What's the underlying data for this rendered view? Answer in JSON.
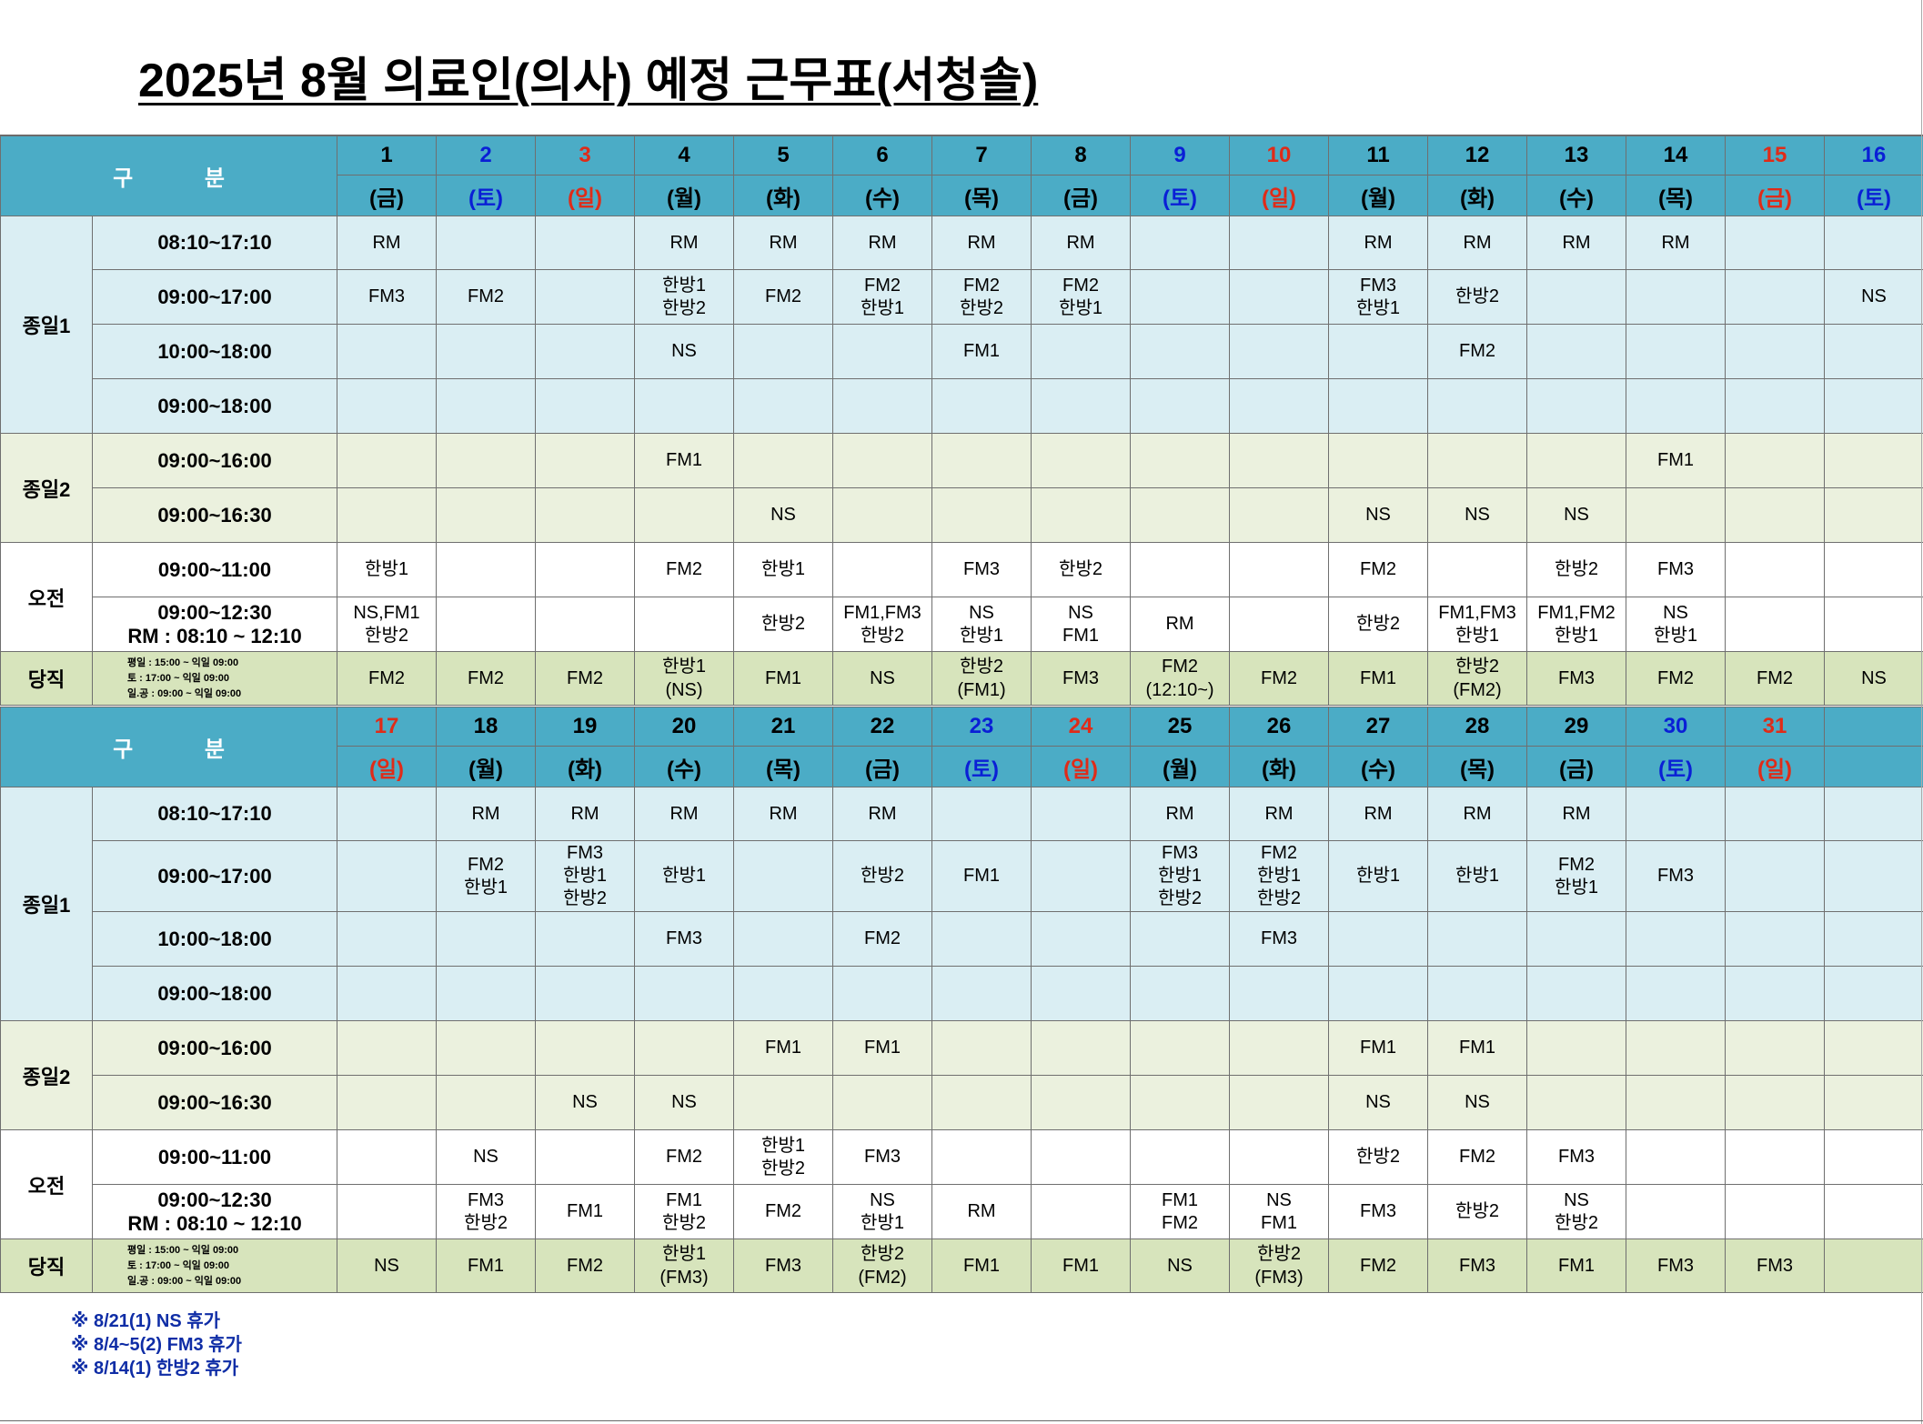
{
  "title": "2025년 8월  의료인(의사) 예정 근무표(서청솔)",
  "colors": {
    "header": "#4bacc6",
    "jongil1": "#daeef3",
    "jongil2": "#ebf1de",
    "duty": "#d7e4bc",
    "saturday": "#0a1fd6",
    "holiday": "#e02b18"
  },
  "gubun_label": "구 분",
  "categories": {
    "jongil1": "종일1",
    "jongil2": "종일2",
    "ojeon": "오전",
    "duty": "당직"
  },
  "shift_times": {
    "j1a": "08:10~17:10",
    "j1b": "09:00~17:00",
    "j1c": "10:00~18:00",
    "j1d": "09:00~18:00",
    "j2a": "09:00~16:00",
    "j2b": "09:00~16:30",
    "ama": "09:00~11:00",
    "amb_line1": "09:00~12:30",
    "amb_line2": "RM : 08:10 ~ 12:10"
  },
  "duty_note": [
    "평일 : 15:00 ~ 익일 09:00",
    "토    : 17:00 ~ 익일 09:00",
    "일.공 : 09:00 ~ 익일 09:00"
  ],
  "weeks": [
    {
      "days": [
        {
          "num": "1",
          "day": "(금)",
          "color": "black"
        },
        {
          "num": "2",
          "day": "(토)",
          "color": "blue"
        },
        {
          "num": "3",
          "day": "(일)",
          "color": "red"
        },
        {
          "num": "4",
          "day": "(월)",
          "color": "black"
        },
        {
          "num": "5",
          "day": "(화)",
          "color": "black"
        },
        {
          "num": "6",
          "day": "(수)",
          "color": "black"
        },
        {
          "num": "7",
          "day": "(목)",
          "color": "black"
        },
        {
          "num": "8",
          "day": "(금)",
          "color": "black"
        },
        {
          "num": "9",
          "day": "(토)",
          "color": "blue"
        },
        {
          "num": "10",
          "day": "(일)",
          "color": "red"
        },
        {
          "num": "11",
          "day": "(월)",
          "color": "black"
        },
        {
          "num": "12",
          "day": "(화)",
          "color": "black"
        },
        {
          "num": "13",
          "day": "(수)",
          "color": "black"
        },
        {
          "num": "14",
          "day": "(목)",
          "color": "black"
        },
        {
          "num": "15",
          "day": "(금)",
          "color": "red"
        },
        {
          "num": "16",
          "day": "(토)",
          "color": "blue"
        }
      ],
      "j1a": [
        "RM",
        "",
        "",
        "RM",
        "RM",
        "RM",
        "RM",
        "RM",
        "",
        "",
        "RM",
        "RM",
        "RM",
        "RM",
        "",
        ""
      ],
      "j1b": [
        [
          "FM3"
        ],
        [
          "FM2"
        ],
        [],
        [
          "한방1",
          "한방2"
        ],
        [
          "FM2"
        ],
        [
          "FM2",
          "한방1"
        ],
        [
          "FM2",
          "한방2"
        ],
        [
          "FM2",
          "한방1"
        ],
        [],
        [],
        [
          "FM3",
          "한방1"
        ],
        [
          "한방2"
        ],
        [],
        [],
        [],
        [
          "NS"
        ]
      ],
      "j1c": [
        "",
        "",
        "",
        "NS",
        "",
        "",
        "FM1",
        "",
        "",
        "",
        "",
        "FM2",
        "",
        "",
        "",
        ""
      ],
      "j1d": [
        "",
        "",
        "",
        "",
        "",
        "",
        "",
        "",
        "",
        "",
        "",
        "",
        "",
        "",
        "",
        ""
      ],
      "j2a": [
        "",
        "",
        "",
        "FM1",
        "",
        "",
        "",
        "",
        "",
        "",
        "",
        "",
        "",
        "FM1",
        "",
        ""
      ],
      "j2b": [
        "",
        "",
        "",
        "",
        "NS",
        "",
        "",
        "",
        "",
        "",
        "NS",
        "NS",
        "NS",
        "",
        "",
        ""
      ],
      "ama": [
        "한방1",
        "",
        "",
        "FM2",
        "한방1",
        "",
        "FM3",
        "한방2",
        "",
        "",
        "FM2",
        "",
        "한방2",
        "FM3",
        "",
        ""
      ],
      "amb": [
        [
          "NS,FM1",
          "한방2"
        ],
        [],
        [],
        [],
        [
          "한방2"
        ],
        [
          "FM1,FM3",
          "한방2"
        ],
        [
          "NS",
          "한방1"
        ],
        [
          "NS",
          "FM1"
        ],
        [
          "RM"
        ],
        [],
        [
          "한방2"
        ],
        [
          "FM1,FM3",
          "한방1"
        ],
        [
          "FM1,FM2",
          "한방1"
        ],
        [
          "NS",
          "한방1"
        ],
        [],
        []
      ],
      "duty": [
        [
          "FM2"
        ],
        [
          "FM2"
        ],
        [
          "FM2"
        ],
        [
          "한방1",
          "(NS)"
        ],
        [
          "FM1"
        ],
        [
          "NS"
        ],
        [
          "한방2",
          "(FM1)"
        ],
        [
          "FM3"
        ],
        [
          "FM2",
          "(12:10~)"
        ],
        [
          "FM2"
        ],
        [
          "FM1"
        ],
        [
          "한방2",
          "(FM2)"
        ],
        [
          "FM3"
        ],
        [
          "FM2"
        ],
        [
          "FM2"
        ],
        [
          "NS"
        ]
      ]
    },
    {
      "days": [
        {
          "num": "17",
          "day": "(일)",
          "color": "red"
        },
        {
          "num": "18",
          "day": "(월)",
          "color": "black"
        },
        {
          "num": "19",
          "day": "(화)",
          "color": "black"
        },
        {
          "num": "20",
          "day": "(수)",
          "color": "black"
        },
        {
          "num": "21",
          "day": "(목)",
          "color": "black"
        },
        {
          "num": "22",
          "day": "(금)",
          "color": "black"
        },
        {
          "num": "23",
          "day": "(토)",
          "color": "blue"
        },
        {
          "num": "24",
          "day": "(일)",
          "color": "red"
        },
        {
          "num": "25",
          "day": "(월)",
          "color": "black"
        },
        {
          "num": "26",
          "day": "(화)",
          "color": "black"
        },
        {
          "num": "27",
          "day": "(수)",
          "color": "black"
        },
        {
          "num": "28",
          "day": "(목)",
          "color": "black"
        },
        {
          "num": "29",
          "day": "(금)",
          "color": "black"
        },
        {
          "num": "30",
          "day": "(토)",
          "color": "blue"
        },
        {
          "num": "31",
          "day": "(일)",
          "color": "red"
        },
        {
          "num": "",
          "day": "",
          "color": "black"
        }
      ],
      "j1a": [
        "",
        "RM",
        "RM",
        "RM",
        "RM",
        "RM",
        "",
        "",
        "RM",
        "RM",
        "RM",
        "RM",
        "RM",
        "",
        "",
        ""
      ],
      "j1b": [
        [],
        [
          "FM2",
          "한방1"
        ],
        [
          "FM3",
          "한방1",
          "한방2"
        ],
        [
          "한방1"
        ],
        [],
        [
          "한방2"
        ],
        [
          "FM1"
        ],
        [],
        [
          "FM3",
          "한방1",
          "한방2"
        ],
        [
          "FM2",
          "한방1",
          "한방2"
        ],
        [
          "한방1"
        ],
        [
          "한방1"
        ],
        [
          "FM2",
          "한방1"
        ],
        [
          "FM3"
        ],
        [],
        []
      ],
      "j1c": [
        "",
        "",
        "",
        "FM3",
        "",
        "FM2",
        "",
        "",
        "",
        "FM3",
        "",
        "",
        "",
        "",
        "",
        ""
      ],
      "j1d": [
        "",
        "",
        "",
        "",
        "",
        "",
        "",
        "",
        "",
        "",
        "",
        "",
        "",
        "",
        "",
        ""
      ],
      "j2a": [
        "",
        "",
        "",
        "",
        "FM1",
        "FM1",
        "",
        "",
        "",
        "",
        "FM1",
        "FM1",
        "",
        "",
        "",
        ""
      ],
      "j2b": [
        "",
        "",
        "NS",
        "NS",
        "",
        "",
        "",
        "",
        "",
        "",
        "NS",
        "NS",
        "",
        "",
        "",
        ""
      ],
      "ama": [
        [],
        [
          "NS"
        ],
        [],
        [
          "FM2"
        ],
        [
          "한방1",
          "한방2"
        ],
        [
          "FM3"
        ],
        [],
        [],
        [],
        [],
        [
          "한방2"
        ],
        [
          "FM2"
        ],
        [
          "FM3"
        ],
        [],
        [],
        []
      ],
      "amb": [
        [],
        [
          "FM3",
          "한방2"
        ],
        [
          "FM1"
        ],
        [
          "FM1",
          "한방2"
        ],
        [
          "FM2"
        ],
        [
          "NS",
          "한방1"
        ],
        [
          "RM"
        ],
        [],
        [
          "FM1",
          "FM2"
        ],
        [
          "NS",
          "FM1"
        ],
        [
          "FM3"
        ],
        [
          "한방2"
        ],
        [
          "NS",
          "한방2"
        ],
        [],
        [],
        []
      ],
      "duty": [
        [
          "NS"
        ],
        [
          "FM1"
        ],
        [
          "FM2"
        ],
        [
          "한방1",
          "(FM3)"
        ],
        [
          "FM3"
        ],
        [
          "한방2",
          "(FM2)"
        ],
        [
          "FM1"
        ],
        [
          "FM1"
        ],
        [
          "NS"
        ],
        [
          "한방2",
          "(FM3)"
        ],
        [
          "FM2"
        ],
        [
          "FM3"
        ],
        [
          "FM1"
        ],
        [
          "FM3"
        ],
        [
          "FM3"
        ],
        []
      ]
    }
  ],
  "notes": [
    "※ 8/21(1) NS 휴가",
    "※ 8/4~5(2) FM3 휴가",
    "※ 8/14(1) 한방2 휴가"
  ]
}
